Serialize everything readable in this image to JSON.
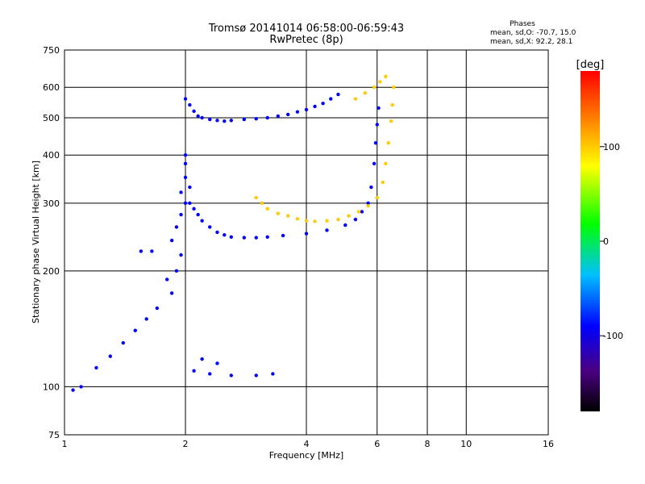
{
  "chart_data": {
    "type": "scatter",
    "title": "Tromsø 20141014 06:58:00-06:59:43",
    "subtitle": "RwPretec (8p)",
    "xlabel": "Frequency [MHz]",
    "ylabel": "Stationary phase Virtual Height [km]",
    "x_scale": "log",
    "y_scale": "log",
    "xlim": [
      1,
      16
    ],
    "ylim": [
      75,
      750
    ],
    "x_ticks": [
      1,
      2,
      4,
      6,
      8,
      10,
      16
    ],
    "x_tick_labels": [
      "1",
      "2",
      "4",
      "6",
      "8",
      "10",
      "16"
    ],
    "y_ticks": [
      75,
      100,
      200,
      300,
      400,
      500,
      600,
      750
    ],
    "y_tick_labels": [
      "75",
      "100",
      "200",
      "300",
      "400",
      "500",
      "600",
      "750"
    ],
    "grid": true,
    "legend": {
      "title": "Phases",
      "lines": [
        "mean, sd,O: -70.7, 15.0",
        "mean, sd,X:  92.2, 28.1"
      ],
      "placement": "top-right"
    },
    "colorbar": {
      "label": "[deg]",
      "min": -180,
      "max": 180,
      "ticks": [
        100,
        0,
        -100
      ],
      "tick_labels": [
        "100",
        "0",
        "-100"
      ],
      "placement": "right"
    },
    "series": [
      {
        "mode": "O",
        "points": [
          [
            2.0,
            560
          ],
          [
            2.05,
            540
          ],
          [
            2.1,
            520
          ],
          [
            2.15,
            505
          ],
          [
            2.2,
            500
          ],
          [
            2.3,
            495
          ],
          [
            2.4,
            492
          ],
          [
            2.5,
            490
          ],
          [
            2.6,
            492
          ],
          [
            2.8,
            495
          ],
          [
            3.0,
            497
          ],
          [
            3.2,
            500
          ],
          [
            3.4,
            505
          ],
          [
            3.6,
            510
          ],
          [
            3.8,
            518
          ],
          [
            4.0,
            525
          ],
          [
            4.2,
            535
          ],
          [
            4.4,
            545
          ],
          [
            4.6,
            560
          ],
          [
            4.8,
            575
          ],
          [
            2.05,
            300
          ],
          [
            2.1,
            290
          ],
          [
            2.15,
            280
          ],
          [
            2.2,
            270
          ],
          [
            2.3,
            260
          ],
          [
            2.4,
            252
          ],
          [
            2.5,
            248
          ],
          [
            2.6,
            245
          ],
          [
            2.8,
            244
          ],
          [
            3.0,
            244
          ],
          [
            3.2,
            245
          ],
          [
            3.5,
            247
          ],
          [
            4.0,
            250
          ],
          [
            4.5,
            255
          ],
          [
            5.0,
            263
          ],
          [
            5.3,
            272
          ],
          [
            5.5,
            285
          ],
          [
            5.7,
            300
          ],
          [
            5.8,
            330
          ],
          [
            5.9,
            380
          ],
          [
            5.95,
            430
          ],
          [
            6.0,
            480
          ],
          [
            6.05,
            530
          ],
          [
            2.0,
            400
          ],
          [
            2.0,
            380
          ],
          [
            2.0,
            350
          ],
          [
            2.05,
            330
          ],
          [
            1.95,
            320
          ],
          [
            2.0,
            300
          ],
          [
            1.95,
            280
          ],
          [
            1.9,
            260
          ],
          [
            1.85,
            240
          ],
          [
            1.95,
            220
          ],
          [
            1.9,
            200
          ],
          [
            1.8,
            190
          ],
          [
            1.85,
            175
          ],
          [
            1.7,
            160
          ],
          [
            1.6,
            150
          ],
          [
            1.5,
            140
          ],
          [
            1.4,
            130
          ],
          [
            1.3,
            120
          ],
          [
            1.2,
            112
          ],
          [
            1.1,
            100
          ],
          [
            1.05,
            98
          ],
          [
            2.1,
            110
          ],
          [
            2.3,
            108
          ],
          [
            2.6,
            107
          ],
          [
            3.0,
            107
          ],
          [
            3.3,
            108
          ],
          [
            2.2,
            118
          ],
          [
            2.4,
            115
          ],
          [
            1.55,
            225
          ],
          [
            1.65,
            225
          ]
        ],
        "phase_deg": -90
      },
      {
        "mode": "X",
        "points": [
          [
            3.0,
            310
          ],
          [
            3.1,
            300
          ],
          [
            3.2,
            290
          ],
          [
            3.4,
            282
          ],
          [
            3.6,
            278
          ],
          [
            3.8,
            273
          ],
          [
            4.0,
            270
          ],
          [
            4.2,
            269
          ],
          [
            4.5,
            270
          ],
          [
            4.8,
            272
          ],
          [
            5.1,
            278
          ],
          [
            5.4,
            285
          ],
          [
            5.7,
            295
          ],
          [
            6.0,
            310
          ],
          [
            6.2,
            340
          ],
          [
            6.3,
            380
          ],
          [
            6.4,
            430
          ],
          [
            6.5,
            490
          ],
          [
            6.55,
            540
          ],
          [
            6.6,
            600
          ],
          [
            5.3,
            560
          ],
          [
            5.6,
            580
          ],
          [
            5.9,
            600
          ],
          [
            6.1,
            620
          ],
          [
            6.3,
            640
          ]
        ],
        "phase_deg": 100
      }
    ]
  }
}
